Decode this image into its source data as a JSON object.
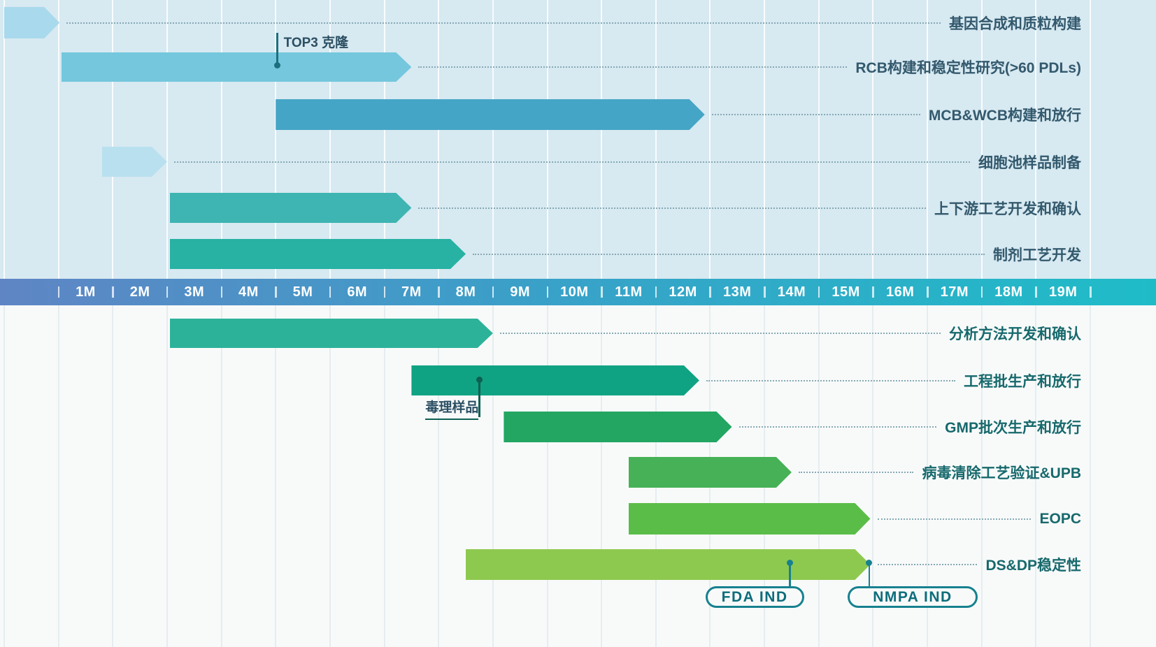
{
  "chart_data": {
    "type": "gantt",
    "title": "",
    "axis": {
      "unit": "months",
      "tick_labels": [
        "1M",
        "2M",
        "3M",
        "4M",
        "5M",
        "6M",
        "7M",
        "8M",
        "9M",
        "10M",
        "11M",
        "12M",
        "13M",
        "14M",
        "15M",
        "16M",
        "17M",
        "18M",
        "19M"
      ],
      "range": [
        0,
        20
      ],
      "note": "time origin 0 is the chart left edge; the column labeled '1M' spans months 1-2 of the drawing grid"
    },
    "tasks": [
      {
        "id": "gene-synthesis",
        "label": "基因合成和质粒构建",
        "start": 0,
        "end": 1.02,
        "color": "#a9d9ec",
        "section": "top"
      },
      {
        "id": "rcb",
        "label": "RCB构建和稳定性研究(>60 PDLs)",
        "start": 1.05,
        "end": 7.5,
        "color": "#74c7dd",
        "section": "top"
      },
      {
        "id": "mcb-wcb",
        "label": "MCB&WCB构建和放行",
        "start": 5.0,
        "end": 12.9,
        "color": "#45a5c6",
        "section": "top"
      },
      {
        "id": "cell-pool",
        "label": "细胞池样品制备",
        "start": 1.8,
        "end": 3.0,
        "color": "#b9e0ee",
        "section": "top"
      },
      {
        "id": "updownstream",
        "label": "上下游工艺开发和确认",
        "start": 3.05,
        "end": 7.5,
        "color": "#3eb5b2",
        "section": "top"
      },
      {
        "id": "formulation",
        "label": "制剂工艺开发",
        "start": 3.05,
        "end": 8.5,
        "color": "#27b2a3",
        "section": "top"
      },
      {
        "id": "analytical",
        "label": "分析方法开发和确认",
        "start": 3.05,
        "end": 9.0,
        "color": "#2db29a",
        "section": "bottom"
      },
      {
        "id": "engineering-batch",
        "label": "工程批生产和放行",
        "start": 7.5,
        "end": 12.8,
        "color": "#10a383",
        "section": "bottom"
      },
      {
        "id": "gmp-batch",
        "label": "GMP批次生产和放行",
        "start": 9.2,
        "end": 13.4,
        "color": "#22a662",
        "section": "bottom"
      },
      {
        "id": "viral-clearance",
        "label": "病毒清除工艺验证&UPB",
        "start": 11.5,
        "end": 14.5,
        "color": "#46b156",
        "section": "bottom"
      },
      {
        "id": "eopc",
        "label": "EOPC",
        "start": 11.5,
        "end": 15.95,
        "color": "#5abd48",
        "section": "bottom"
      },
      {
        "id": "ds-dp-stability",
        "label": "DS&DP稳定性",
        "start": 8.5,
        "end": 15.95,
        "color": "#8ec94f",
        "section": "bottom"
      }
    ],
    "milestones": [
      {
        "id": "top3-clone",
        "label": "TOP3 克隆",
        "month": 5.03,
        "task": "rcb"
      },
      {
        "id": "tox-sample",
        "label": "毒理样品",
        "month": 8.75,
        "task": "engineering-batch"
      },
      {
        "id": "fda-ind",
        "label": "FDA IND",
        "month": 14.47,
        "task": "ds-dp-stability"
      },
      {
        "id": "nmpa-ind",
        "label": "NMPA IND",
        "month": 15.93,
        "task": "ds-dp-stability"
      }
    ]
  },
  "colors": {
    "top_background": "#d7e9f1",
    "bottom_background": "#f8fafa",
    "axis_gradient_left": "#5f85c5",
    "axis_gradient_right": "#1fbcc8",
    "axis_text": "#ffffff",
    "top_label": "#33596d",
    "bottom_label": "#17696c",
    "leader_dots": "#86a9b4",
    "milestone_line": "#1d6f80",
    "milestone_line_dark": "#0d6053",
    "milestone_label": "#2b4f63",
    "ind_pill_border": "#17818f",
    "ind_pill_text": "#0d6d7b"
  }
}
